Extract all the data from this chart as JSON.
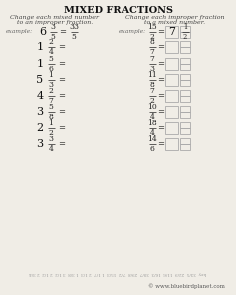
{
  "title": "MIXED FRACTIONS",
  "left_header1": "Change each mixed number",
  "left_header2": "to an improper fraction.",
  "right_header1": "Change each improper fraction",
  "right_header2": "to a mixed number.",
  "bg_color": "#f0ede6",
  "left_example": {
    "whole": "6",
    "num": "3",
    "den": "5",
    "result_num": "33",
    "result_den": "5"
  },
  "right_example": {
    "num": "15",
    "den": "2",
    "whole": "7",
    "rem_num": "1",
    "rem_den": "2"
  },
  "left_problems": [
    {
      "whole": "1",
      "num": "2",
      "den": "4"
    },
    {
      "whole": "1",
      "num": "5",
      "den": "6"
    },
    {
      "whole": "5",
      "num": "1",
      "den": "3"
    },
    {
      "whole": "4",
      "num": "2",
      "den": "7"
    },
    {
      "whole": "3",
      "num": "5",
      "den": "8"
    },
    {
      "whole": "2",
      "num": "1",
      "den": "2"
    },
    {
      "whole": "3",
      "num": "3",
      "den": "4"
    }
  ],
  "right_problems": [
    {
      "num": "8",
      "den": "7"
    },
    {
      "num": "7",
      "den": "3"
    },
    {
      "num": "11",
      "den": "8"
    },
    {
      "num": "7",
      "den": "2"
    },
    {
      "num": "10",
      "den": "4"
    },
    {
      "num": "18",
      "den": "4"
    },
    {
      "num": "14",
      "den": "6"
    }
  ],
  "copyright": "© www.bluebirdplanet.com"
}
